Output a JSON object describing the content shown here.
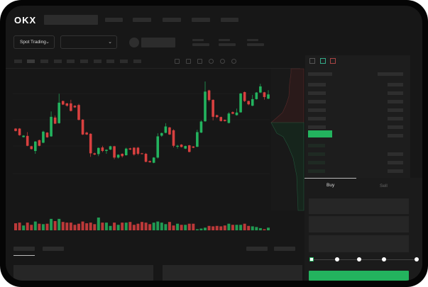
{
  "header": {
    "logo": "OKX",
    "market_dropdown": "Spot Trading"
  },
  "trade": {
    "tabs": [
      "Buy",
      "Sell"
    ],
    "active_tab": "Buy"
  },
  "colors": {
    "up": "#23b35e",
    "down": "#d9403f",
    "background": "#171717",
    "accent": "#23b35e"
  },
  "icons": [
    "chevron-down-icon",
    "indicator-icon",
    "draw-icon",
    "camera-icon",
    "settings-icon",
    "fullscreen-icon",
    "orderbook-both-icon",
    "orderbook-bids-icon",
    "orderbook-asks-icon"
  ],
  "slider": {
    "value_percent": 0,
    "stops": [
      0,
      25,
      50,
      75,
      100
    ]
  },
  "chart_data": {
    "type": "candlestick",
    "candles_ohlc": [
      [
        155,
        157,
        143,
        145
      ],
      [
        155,
        157,
        125,
        127
      ],
      [
        119,
        127,
        117,
        125
      ],
      [
        124,
        140,
        80,
        82
      ],
      [
        80,
        82,
        66,
        68
      ],
      [
        60,
        102,
        48,
        100
      ],
      [
        106,
        108,
        80,
        82
      ],
      [
        95,
        146,
        93,
        142
      ],
      [
        138,
        140,
        116,
        118
      ],
      [
        122,
        228,
        120,
        205
      ],
      [
        202,
        210,
        174,
        176
      ],
      [
        178,
        303,
        176,
        265
      ],
      [
        272,
        274,
        255,
        257
      ],
      [
        262,
        264,
        248,
        252
      ],
      [
        262,
        277,
        228,
        230
      ],
      [
        252,
        254,
        243,
        245
      ],
      [
        255,
        260,
        190,
        192
      ],
      [
        193,
        195,
        128,
        130
      ],
      [
        138,
        142,
        128,
        130
      ],
      [
        133,
        135,
        35,
        50
      ],
      [
        50,
        53,
        42,
        45
      ],
      [
        47,
        75,
        38,
        73
      ],
      [
        75,
        82,
        55,
        60
      ],
      [
        60,
        67,
        48,
        65
      ],
      [
        66,
        82,
        64,
        80
      ],
      [
        80,
        82,
        25,
        32
      ],
      [
        32,
        46,
        28,
        44
      ],
      [
        48,
        50,
        32,
        38
      ],
      [
        42,
        74,
        40,
        70
      ],
      [
        71,
        74,
        64,
        66
      ],
      [
        74,
        76,
        40,
        45
      ],
      [
        74,
        77,
        42,
        48
      ],
      [
        50,
        52,
        45,
        47
      ],
      [
        48,
        52,
        12,
        14
      ],
      [
        17,
        20,
        10,
        12
      ],
      [
        10,
        34,
        8,
        32
      ],
      [
        32,
        135,
        28,
        122
      ],
      [
        125,
        138,
        120,
        136
      ],
      [
        137,
        178,
        135,
        164
      ],
      [
        160,
        162,
        128,
        130
      ],
      [
        148,
        152,
        75,
        82
      ],
      [
        78,
        86,
        70,
        82
      ],
      [
        87,
        89,
        75,
        77
      ],
      [
        70,
        83,
        68,
        81
      ],
      [
        84,
        86,
        54,
        56
      ],
      [
        79,
        81,
        72,
        74
      ],
      [
        78,
        150,
        76,
        140
      ],
      [
        138,
        190,
        136,
        185
      ],
      [
        186,
        355,
        184,
        312
      ],
      [
        317,
        320,
        270,
        276
      ],
      [
        277,
        279,
        190,
        205
      ],
      [
        212,
        214,
        200,
        204
      ],
      [
        204,
        206,
        185,
        187
      ],
      [
        192,
        194,
        185,
        187
      ],
      [
        179,
        225,
        177,
        219
      ],
      [
        225,
        228,
        216,
        218
      ],
      [
        212,
        240,
        210,
        223
      ],
      [
        224,
        306,
        222,
        304
      ],
      [
        310,
        312,
        268,
        272
      ],
      [
        272,
        274,
        254,
        258
      ],
      [
        252,
        298,
        250,
        280
      ],
      [
        280,
        310,
        278,
        308
      ],
      [
        308,
        345,
        306,
        334
      ],
      [
        309,
        311,
        278,
        289
      ],
      [
        282,
        318,
        280,
        300
      ]
    ],
    "volumes": [
      32,
      35,
      22,
      35,
      25,
      40,
      30,
      28,
      30,
      52,
      42,
      52,
      38,
      35,
      35,
      25,
      30,
      40,
      32,
      35,
      28,
      58,
      35,
      35,
      20,
      35,
      25,
      35,
      35,
      38,
      25,
      30,
      38,
      35,
      28,
      35,
      40,
      35,
      28,
      38,
      22,
      30,
      25,
      25,
      30,
      30,
      5,
      8,
      12,
      20,
      18,
      20,
      18,
      22,
      30,
      25,
      25,
      25,
      30,
      20,
      18,
      15,
      10,
      5,
      12
    ],
    "ylim": [
      0,
      400
    ],
    "grid": true
  }
}
